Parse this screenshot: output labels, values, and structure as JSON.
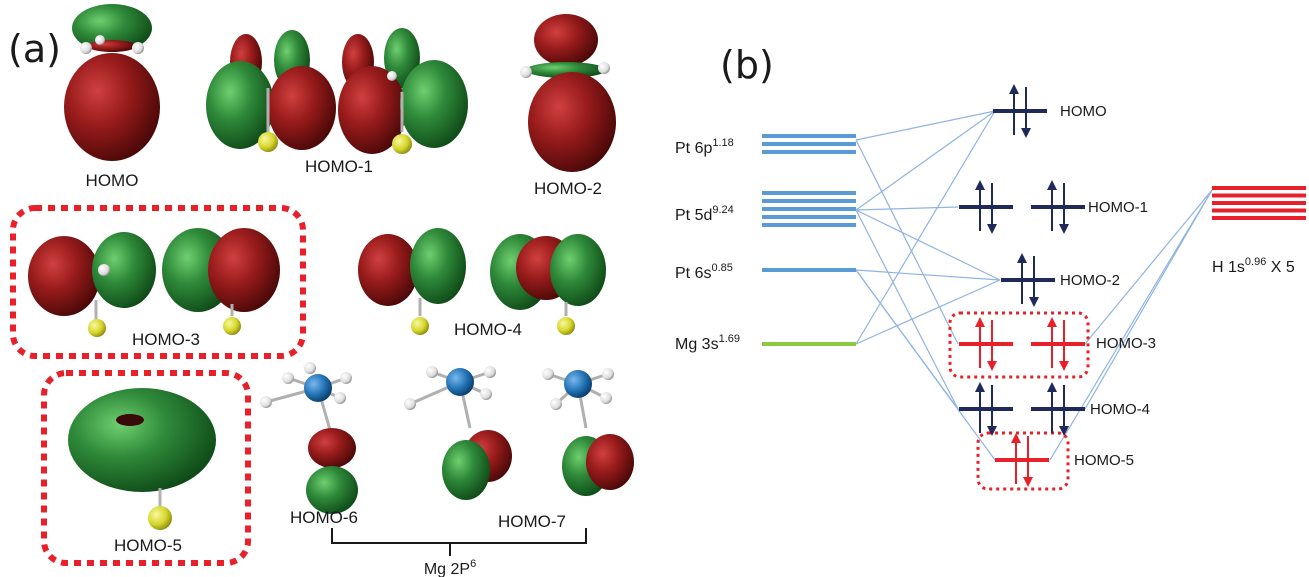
{
  "panel_a": {
    "label": "(a)",
    "orbitals": [
      {
        "id": "homo",
        "name": "HOMO"
      },
      {
        "id": "homo1",
        "name": "HOMO-1"
      },
      {
        "id": "homo2",
        "name": "HOMO-2"
      },
      {
        "id": "homo3",
        "name": "HOMO-3"
      },
      {
        "id": "homo4",
        "name": "HOMO-4"
      },
      {
        "id": "homo5",
        "name": "HOMO-5"
      },
      {
        "id": "homo6",
        "name": "HOMO-6"
      },
      {
        "id": "homo7",
        "name": "HOMO-7"
      }
    ],
    "bracket_label": {
      "base": "Mg 2P",
      "sup": "6"
    }
  },
  "panel_b": {
    "label": "(b)",
    "atomic_levels": [
      {
        "id": "pt6p",
        "base": "Pt 6p",
        "sup": "1.18",
        "lines": 3,
        "color": "#5b9bd5"
      },
      {
        "id": "pt5d",
        "base": "Pt 5d",
        "sup": "9.24",
        "lines": 5,
        "color": "#5b9bd5"
      },
      {
        "id": "pt6s",
        "base": "Pt 6s",
        "sup": "0.85",
        "lines": 1,
        "color": "#5b9bd5"
      },
      {
        "id": "mg3s",
        "base": "Mg 3s",
        "sup": "1.69",
        "lines": 1,
        "color": "#8dc63f"
      }
    ],
    "h_level": {
      "base": "H 1s",
      "sup": "0.96",
      "suffix": " X 5",
      "lines": 5,
      "color": "#e8202a"
    },
    "mo_levels": [
      {
        "id": "mo0",
        "name": "HOMO",
        "count": 1,
        "color": "#1f2a5a"
      },
      {
        "id": "mo1",
        "name": "HOMO-1",
        "count": 2,
        "color": "#1f2a5a"
      },
      {
        "id": "mo2",
        "name": "HOMO-2",
        "count": 1,
        "color": "#1f2a5a"
      },
      {
        "id": "mo3",
        "name": "HOMO-3",
        "count": 2,
        "color": "#e8202a"
      },
      {
        "id": "mo4",
        "name": "HOMO-4",
        "count": 2,
        "color": "#1f2a5a"
      },
      {
        "id": "mo5",
        "name": "HOMO-5",
        "count": 1,
        "color": "#e8202a"
      }
    ],
    "connector_color": "#8fb4e3",
    "highlight_color": "#e8202a"
  },
  "colors": {
    "lobe_red": "#8b1a1a",
    "lobe_green": "#2f8a3a",
    "mg_atom": "#d6d62a",
    "pt_atom": "#1f6fb0",
    "h_atom": "#ffffff"
  }
}
